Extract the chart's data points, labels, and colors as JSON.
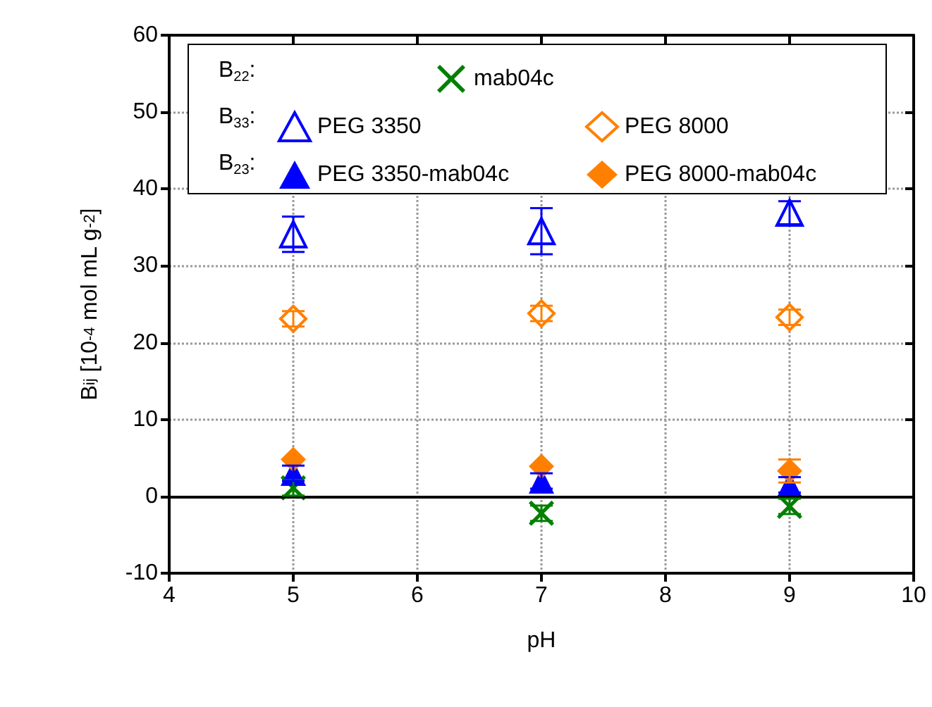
{
  "chart_data": {
    "type": "scatter",
    "xlabel": "pH",
    "ylabel": "B$_{ij}$ [10$^{-4}$ mol mL g$^{-2}$]",
    "x": [
      5,
      7,
      9
    ],
    "xlim": [
      4,
      10
    ],
    "xticks": [
      4,
      5,
      6,
      7,
      8,
      9,
      10
    ],
    "ylim": [
      -10,
      60
    ],
    "yticks": [
      -10,
      0,
      10,
      20,
      30,
      40,
      50,
      60
    ],
    "grid": true,
    "legend": "top",
    "annotations": [
      "B$_{22}$:",
      "B$_{33}$:",
      "B$_{23}$:"
    ],
    "ref_lines": [
      {
        "axis": "y",
        "value": 0,
        "color": "#000000",
        "line_style": "solid"
      }
    ],
    "series": [
      {
        "name": "mab04c",
        "color": "#008000",
        "marker": "cross",
        "values": [
          1.1,
          -2.2,
          -1.3
        ],
        "errors": [
          1,
          1,
          1
        ]
      },
      {
        "name": "PEG 3350",
        "color": "#0000ff",
        "marker": "triangle",
        "values": [
          34.1,
          34.5,
          36.9
        ],
        "errors": [
          2.3,
          3,
          1.5
        ]
      },
      {
        "name": "PEG 8000",
        "color": "#ff8000",
        "marker": "diamond",
        "values": [
          23.1,
          23.8,
          23.3
        ],
        "errors": [
          1,
          1,
          1
        ]
      },
      {
        "name": "PEG 3350-mab04c",
        "color": "#0000ff",
        "marker": "triangle",
        "values": [
          3,
          2,
          1.5
        ],
        "errors": [
          1,
          1,
          1
        ]
      },
      {
        "name": "PEG 8000-mab04c",
        "color": "#ff8000",
        "marker": "diamond",
        "values": [
          4.8,
          3.9,
          3.3
        ],
        "errors": [
          null,
          null,
          1.5
        ]
      }
    ]
  }
}
